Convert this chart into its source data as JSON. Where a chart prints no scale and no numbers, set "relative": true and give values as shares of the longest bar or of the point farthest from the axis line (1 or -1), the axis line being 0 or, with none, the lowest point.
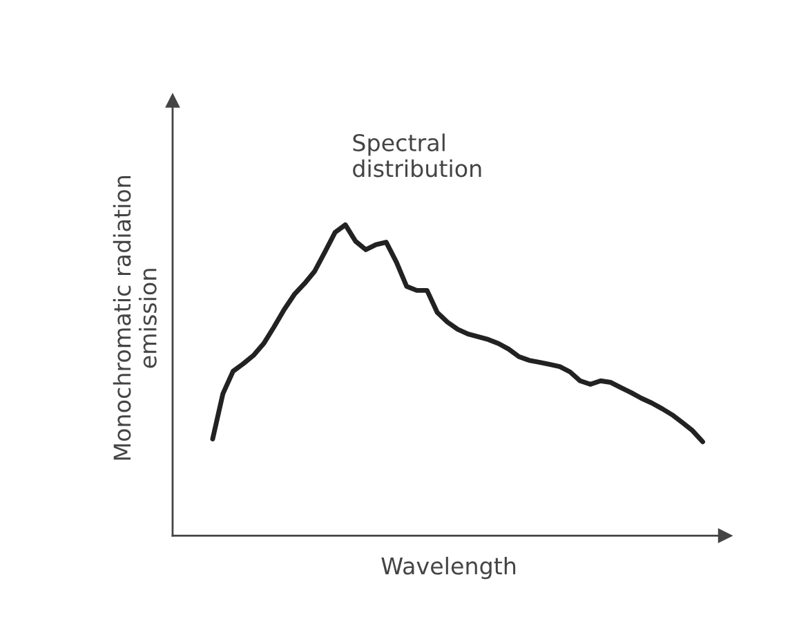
{
  "chart_data": {
    "type": "line",
    "relative": true,
    "xlabel": "Wavelength",
    "ylabel": "Monochromatic radiation\nemission",
    "annotations": [
      "Spectral\ndistribution"
    ],
    "categories": [
      null,
      null,
      null,
      null,
      null,
      null,
      null,
      null,
      null,
      null,
      null,
      null,
      null,
      null,
      null,
      null,
      null,
      null,
      null,
      null,
      null,
      null,
      null,
      null,
      null,
      null,
      null,
      null,
      null,
      null,
      null,
      null,
      null,
      null,
      null,
      null,
      null,
      null,
      null,
      null,
      null,
      null,
      null,
      null,
      null,
      null,
      null,
      null,
      null
    ],
    "series": [
      {
        "color": "#222222",
        "values": [
          0.311,
          0.456,
          0.529,
          0.553,
          0.58,
          0.618,
          0.671,
          0.727,
          0.776,
          0.811,
          0.851,
          0.913,
          0.976,
          1,
          0.947,
          0.92,
          0.936,
          0.944,
          0.88,
          0.802,
          0.789,
          0.789,
          0.718,
          0.687,
          0.664,
          0.649,
          0.64,
          0.631,
          0.618,
          0.6,
          0.576,
          0.564,
          0.558,
          0.551,
          0.544,
          0.527,
          0.498,
          0.487,
          0.498,
          0.493,
          0.476,
          0.46,
          0.442,
          0.427,
          0.409,
          0.389,
          0.364,
          0.338,
          0.302
        ]
      }
    ]
  }
}
